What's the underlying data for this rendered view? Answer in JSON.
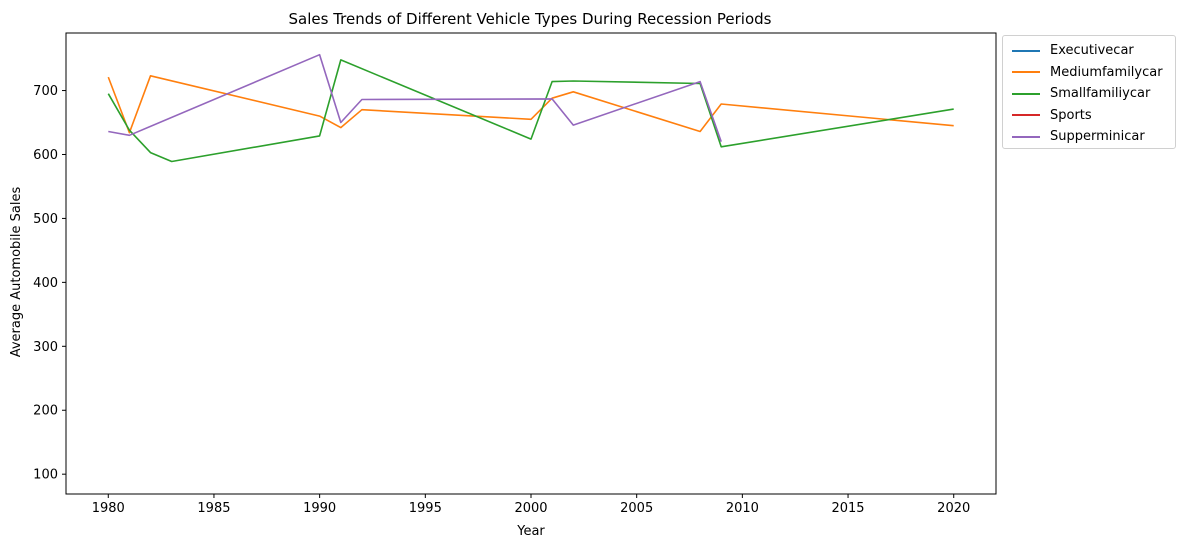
{
  "chart_data": {
    "type": "line",
    "title": "Sales Trends of Different Vehicle Types During Recession Periods",
    "xlabel": "Year",
    "ylabel": "Average Automobile Sales",
    "xlim": [
      1978,
      2022
    ],
    "ylim": [
      69,
      790
    ],
    "xticks": [
      1980,
      1985,
      1990,
      1995,
      2000,
      2005,
      2010,
      2015,
      2020
    ],
    "yticks": [
      100,
      200,
      300,
      400,
      500,
      600,
      700
    ],
    "grid": false,
    "legend_position": "outside upper right",
    "series": [
      {
        "name": "Executivecar",
        "color": "#1f77b4",
        "points": []
      },
      {
        "name": "Mediumfamilycar",
        "color": "#ff7f0e",
        "points": [
          [
            1980,
            721
          ],
          [
            1981,
            634
          ],
          [
            1982,
            723
          ],
          [
            1990,
            660
          ],
          [
            1991,
            642
          ],
          [
            1992,
            670
          ],
          [
            2000,
            655
          ],
          [
            2001,
            688
          ],
          [
            2002,
            698
          ],
          [
            2008,
            636
          ],
          [
            2009,
            679
          ],
          [
            2020,
            645
          ]
        ]
      },
      {
        "name": "Smallfamiliycar",
        "color": "#2ca02c",
        "points": [
          [
            1980,
            695
          ],
          [
            1981,
            638
          ],
          [
            1982,
            603
          ],
          [
            1983,
            589
          ],
          [
            1990,
            629
          ],
          [
            1991,
            748
          ],
          [
            2000,
            624
          ],
          [
            2001,
            714
          ],
          [
            2002,
            715
          ],
          [
            2008,
            711
          ],
          [
            2009,
            612
          ],
          [
            2020,
            671
          ]
        ]
      },
      {
        "name": "Sports",
        "color": "#d62728",
        "points": []
      },
      {
        "name": "Supperminicar",
        "color": "#9467bd",
        "points": [
          [
            1980,
            636
          ],
          [
            1981,
            630
          ],
          [
            1990,
            756
          ],
          [
            1991,
            650
          ],
          [
            1992,
            686
          ],
          [
            2001,
            687
          ],
          [
            2002,
            646
          ],
          [
            2008,
            714
          ],
          [
            2009,
            620
          ]
        ]
      }
    ]
  }
}
